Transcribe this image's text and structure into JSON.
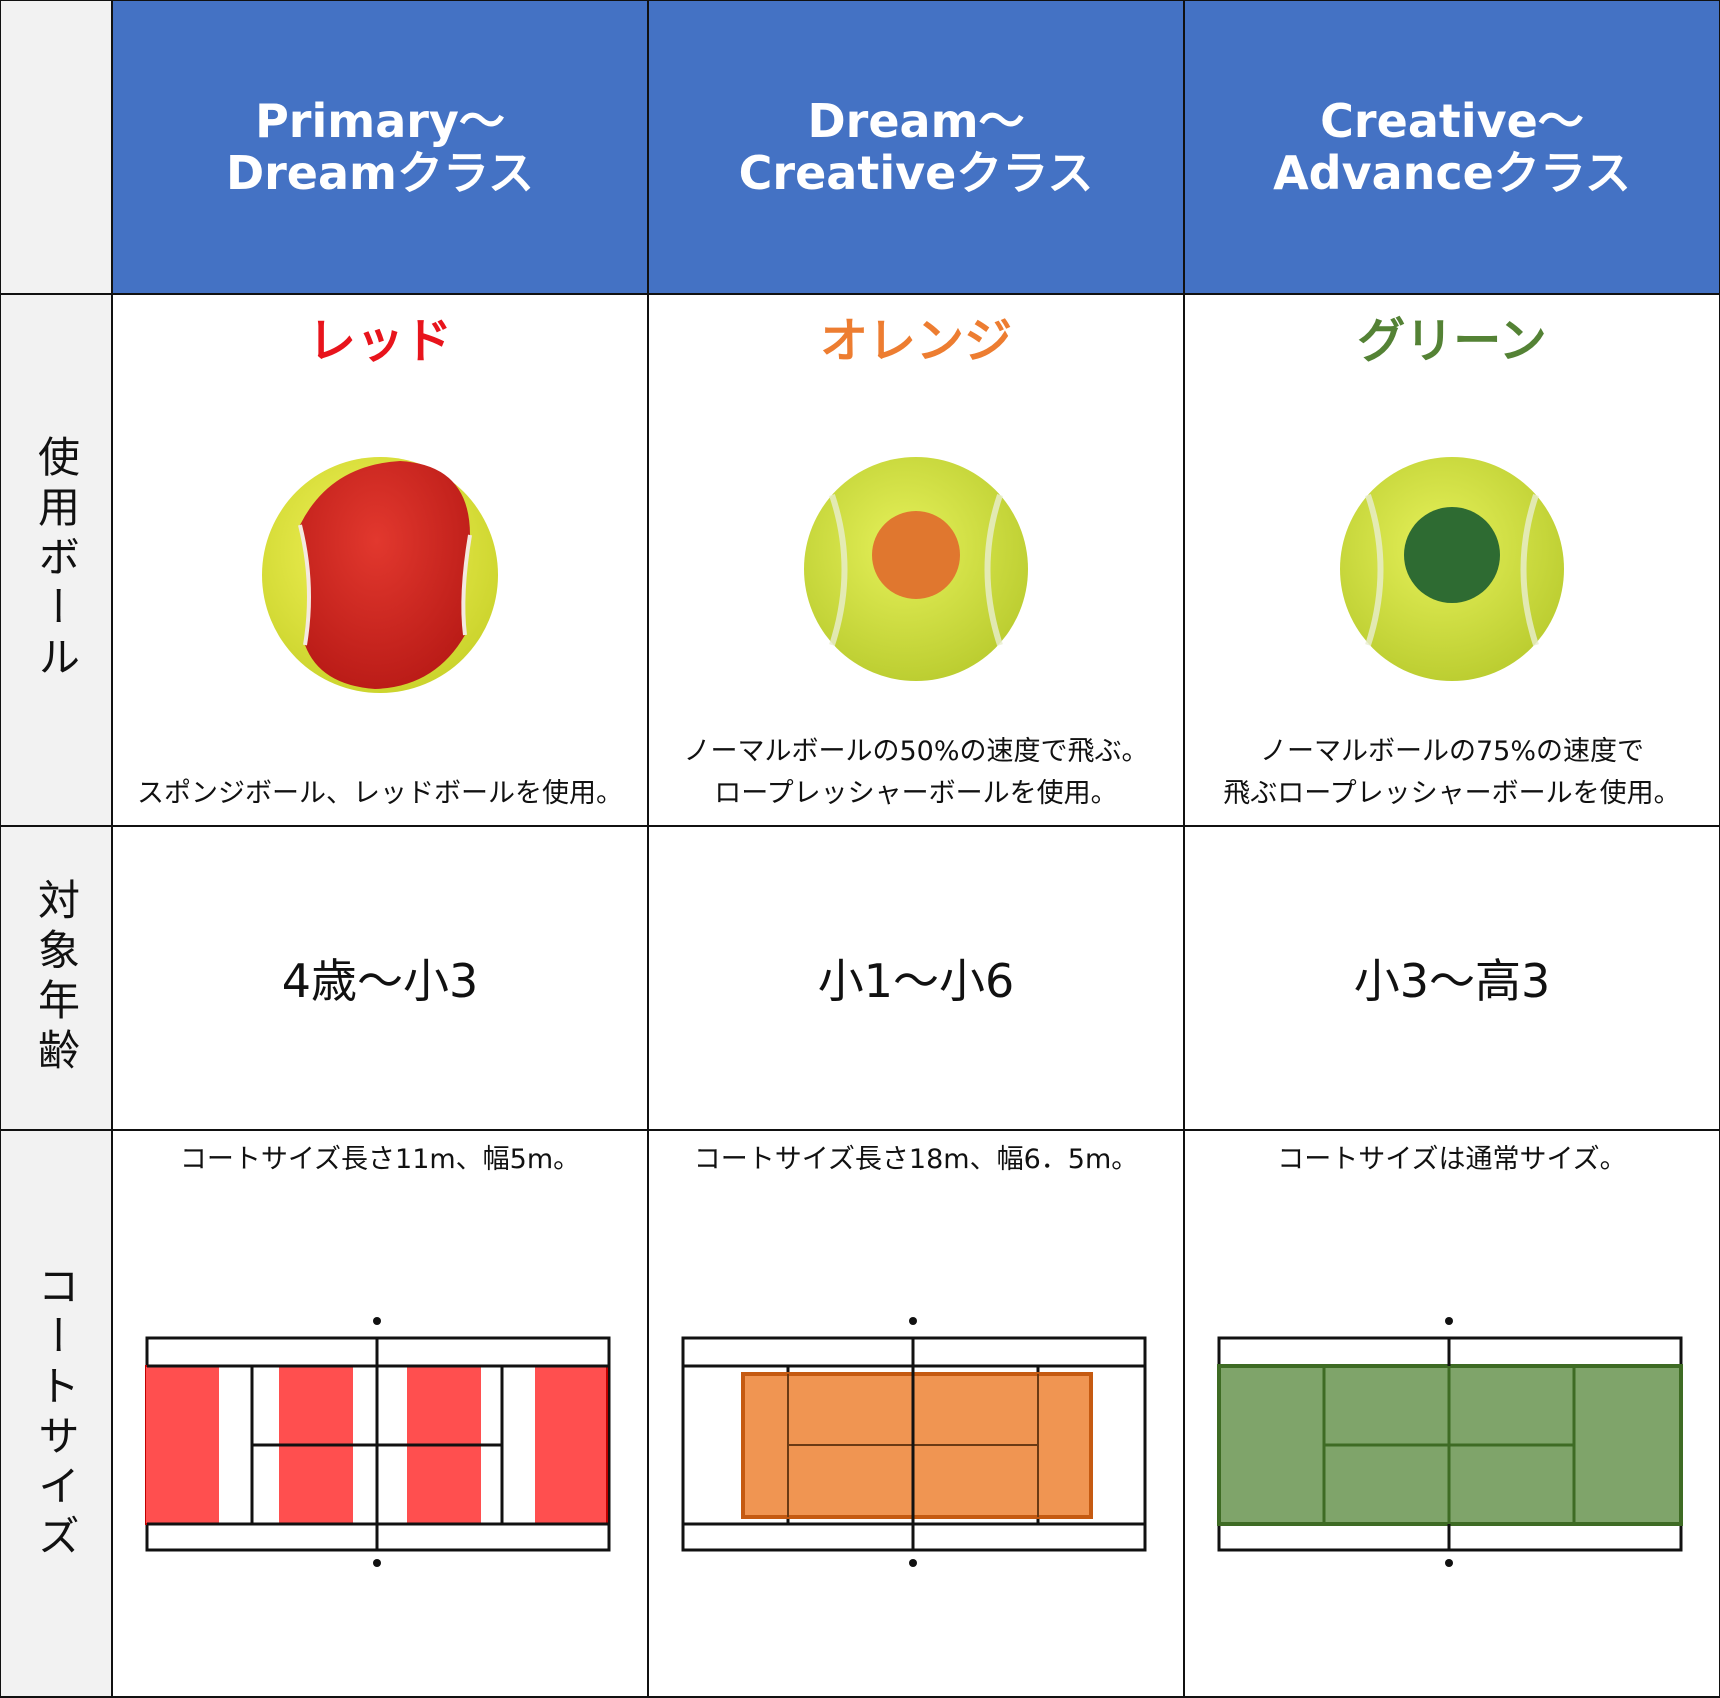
{
  "header": {
    "col1": {
      "line1": "Primary～",
      "line2": "Dreamクラス"
    },
    "col2": {
      "line1": "Dream～",
      "line2": "Creativeクラス"
    },
    "col3": {
      "line1": "Creative～",
      "line2": "Advanceクラス"
    }
  },
  "row_labels": {
    "ball": "使用ボール",
    "age": "対象年齢",
    "court": "コートサイズ"
  },
  "balls": {
    "col1": {
      "name": "レッド",
      "color": "#e8141c",
      "desc1": "",
      "desc2": "スポンジボール、レッドボールを使用。"
    },
    "col2": {
      "name": "オレンジ",
      "color": "#ed7d31",
      "desc1": "ノーマルボールの50%の速度で飛ぶ。",
      "desc2": "ロープレッシャーボールを使用。"
    },
    "col3": {
      "name": "グリーン",
      "color": "#548235",
      "desc1": "ノーマルボールの75%の速度で",
      "desc2": "飛ぶロープレッシャーボールを使用。"
    }
  },
  "ages": {
    "col1": "4歳～小3",
    "col2": "小1～小6",
    "col3": "小3～高3"
  },
  "courts": {
    "col1": {
      "text": "コートサイズ長さ11m、幅5m。",
      "color": "#ff4f4f"
    },
    "col2": {
      "text": "コートサイズ長さ18m、幅6．5m。",
      "color": "#f09552"
    },
    "col3": {
      "text": "コートサイズは通常サイズ。",
      "color": "#7fa46a"
    }
  }
}
